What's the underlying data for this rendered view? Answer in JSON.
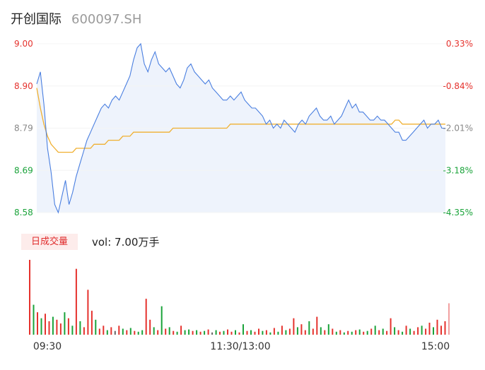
{
  "header": {
    "name": "开创国际",
    "code": "600097.SH"
  },
  "volume": {
    "tag": "日成交量",
    "label": "vol: 7.00万手"
  },
  "colors": {
    "up": "#e5322d",
    "down": "#1aa33a",
    "flat": "#666666",
    "price_line": "#4a7fe0",
    "avg_line": "#f0b030",
    "area": "#eef3fc"
  },
  "chart_data": {
    "type": "line",
    "x_ticks": [
      "09:30",
      "11:30/13:00",
      "15:00"
    ],
    "y_left_ticks": [
      "9.00",
      "8.90",
      "8.79",
      "8.69",
      "8.58"
    ],
    "y_right_ticks": [
      "0.33%",
      "-0.84%",
      "-2.01%",
      "-3.18%",
      "-4.35%"
    ],
    "ylim": [
      8.58,
      9.0
    ],
    "series": [
      {
        "values": [
          8.9,
          8.93,
          8.85,
          8.74,
          8.68,
          8.6,
          8.58,
          8.62,
          8.66,
          8.6,
          8.63,
          8.67,
          8.7,
          8.73,
          8.76,
          8.78,
          8.8,
          8.82,
          8.84,
          8.85,
          8.84,
          8.86,
          8.87,
          8.86,
          8.88,
          8.9,
          8.92,
          8.96,
          8.99,
          9.0,
          8.95,
          8.93,
          8.96,
          8.98,
          8.95,
          8.94,
          8.93,
          8.94,
          8.92,
          8.9,
          8.89,
          8.91,
          8.94,
          8.95,
          8.93,
          8.92,
          8.91,
          8.9,
          8.91,
          8.89,
          8.88,
          8.87,
          8.86,
          8.86,
          8.87,
          8.86,
          8.87,
          8.88,
          8.86,
          8.85,
          8.84,
          8.84,
          8.83,
          8.82,
          8.8,
          8.81,
          8.79,
          8.8,
          8.79,
          8.81,
          8.8,
          8.79,
          8.78,
          8.8,
          8.81,
          8.8,
          8.82,
          8.83,
          8.84,
          8.82,
          8.81,
          8.81,
          8.82,
          8.8,
          8.81,
          8.82,
          8.84,
          8.86,
          8.84,
          8.85,
          8.83,
          8.83,
          8.82,
          8.81,
          8.81,
          8.82,
          8.81,
          8.81,
          8.8,
          8.79,
          8.78,
          8.78,
          8.76,
          8.76,
          8.77,
          8.78,
          8.79,
          8.8,
          8.81,
          8.79,
          8.8,
          8.8,
          8.81,
          8.79,
          8.79
        ]
      },
      {
        "values": [
          8.89,
          8.84,
          8.8,
          8.77,
          8.75,
          8.74,
          8.73,
          8.73,
          8.73,
          8.73,
          8.73,
          8.74,
          8.74,
          8.74,
          8.74,
          8.74,
          8.75,
          8.75,
          8.75,
          8.75,
          8.76,
          8.76,
          8.76,
          8.76,
          8.77,
          8.77,
          8.77,
          8.78,
          8.78,
          8.78,
          8.78,
          8.78,
          8.78,
          8.78,
          8.78,
          8.78,
          8.78,
          8.78,
          8.79,
          8.79,
          8.79,
          8.79,
          8.79,
          8.79,
          8.79,
          8.79,
          8.79,
          8.79,
          8.79,
          8.79,
          8.79,
          8.79,
          8.79,
          8.79,
          8.8,
          8.8,
          8.8,
          8.8,
          8.8,
          8.8,
          8.8,
          8.8,
          8.8,
          8.8,
          8.8,
          8.8,
          8.8,
          8.8,
          8.8,
          8.8,
          8.8,
          8.8,
          8.8,
          8.8,
          8.8,
          8.8,
          8.8,
          8.8,
          8.8,
          8.8,
          8.8,
          8.8,
          8.8,
          8.8,
          8.8,
          8.8,
          8.8,
          8.8,
          8.8,
          8.8,
          8.8,
          8.8,
          8.8,
          8.8,
          8.8,
          8.8,
          8.8,
          8.8,
          8.8,
          8.8,
          8.81,
          8.81,
          8.8,
          8.8,
          8.8,
          8.8,
          8.8,
          8.8,
          8.8,
          8.8,
          8.8,
          8.8,
          8.8,
          8.8,
          8.8
        ]
      }
    ],
    "volume_bars": [
      {
        "v": 100,
        "d": "up"
      },
      {
        "v": 40,
        "d": "down"
      },
      {
        "v": 30,
        "d": "up"
      },
      {
        "v": 22,
        "d": "down"
      },
      {
        "v": 28,
        "d": "up"
      },
      {
        "v": 18,
        "d": "up"
      },
      {
        "v": 24,
        "d": "down"
      },
      {
        "v": 20,
        "d": "up"
      },
      {
        "v": 15,
        "d": "up"
      },
      {
        "v": 30,
        "d": "down"
      },
      {
        "v": 22,
        "d": "up"
      },
      {
        "v": 12,
        "d": "down"
      },
      {
        "v": 88,
        "d": "up"
      },
      {
        "v": 18,
        "d": "down"
      },
      {
        "v": 10,
        "d": "up"
      },
      {
        "v": 60,
        "d": "up"
      },
      {
        "v": 32,
        "d": "up"
      },
      {
        "v": 20,
        "d": "down"
      },
      {
        "v": 8,
        "d": "up"
      },
      {
        "v": 12,
        "d": "up"
      },
      {
        "v": 6,
        "d": "down"
      },
      {
        "v": 10,
        "d": "up"
      },
      {
        "v": 5,
        "d": "flat"
      },
      {
        "v": 12,
        "d": "up"
      },
      {
        "v": 8,
        "d": "down"
      },
      {
        "v": 6,
        "d": "up"
      },
      {
        "v": 9,
        "d": "down"
      },
      {
        "v": 5,
        "d": "up"
      },
      {
        "v": 4,
        "d": "down"
      },
      {
        "v": 6,
        "d": "down"
      },
      {
        "v": 48,
        "d": "up"
      },
      {
        "v": 20,
        "d": "up"
      },
      {
        "v": 10,
        "d": "down"
      },
      {
        "v": 6,
        "d": "up"
      },
      {
        "v": 38,
        "d": "down"
      },
      {
        "v": 8,
        "d": "up"
      },
      {
        "v": 10,
        "d": "down"
      },
      {
        "v": 5,
        "d": "up"
      },
      {
        "v": 4,
        "d": "down"
      },
      {
        "v": 12,
        "d": "up"
      },
      {
        "v": 6,
        "d": "down"
      },
      {
        "v": 7,
        "d": "down"
      },
      {
        "v": 5,
        "d": "up"
      },
      {
        "v": 6,
        "d": "down"
      },
      {
        "v": 4,
        "d": "up"
      },
      {
        "v": 5,
        "d": "down"
      },
      {
        "v": 7,
        "d": "up"
      },
      {
        "v": 3,
        "d": "flat"
      },
      {
        "v": 6,
        "d": "down"
      },
      {
        "v": 4,
        "d": "up"
      },
      {
        "v": 5,
        "d": "down"
      },
      {
        "v": 7,
        "d": "up"
      },
      {
        "v": 4,
        "d": "up"
      },
      {
        "v": 6,
        "d": "down"
      },
      {
        "v": 3,
        "d": "up"
      },
      {
        "v": 14,
        "d": "down"
      },
      {
        "v": 5,
        "d": "up"
      },
      {
        "v": 6,
        "d": "down"
      },
      {
        "v": 4,
        "d": "up"
      },
      {
        "v": 8,
        "d": "up"
      },
      {
        "v": 5,
        "d": "down"
      },
      {
        "v": 6,
        "d": "up"
      },
      {
        "v": 3,
        "d": "down"
      },
      {
        "v": 9,
        "d": "up"
      },
      {
        "v": 4,
        "d": "down"
      },
      {
        "v": 12,
        "d": "up"
      },
      {
        "v": 6,
        "d": "down"
      },
      {
        "v": 8,
        "d": "up"
      },
      {
        "v": 22,
        "d": "up"
      },
      {
        "v": 10,
        "d": "down"
      },
      {
        "v": 14,
        "d": "up"
      },
      {
        "v": 6,
        "d": "up"
      },
      {
        "v": 18,
        "d": "down"
      },
      {
        "v": 8,
        "d": "up"
      },
      {
        "v": 24,
        "d": "up"
      },
      {
        "v": 10,
        "d": "down"
      },
      {
        "v": 6,
        "d": "up"
      },
      {
        "v": 14,
        "d": "down"
      },
      {
        "v": 8,
        "d": "up"
      },
      {
        "v": 4,
        "d": "down"
      },
      {
        "v": 6,
        "d": "up"
      },
      {
        "v": 3,
        "d": "down"
      },
      {
        "v": 5,
        "d": "up"
      },
      {
        "v": 4,
        "d": "down"
      },
      {
        "v": 6,
        "d": "up"
      },
      {
        "v": 7,
        "d": "down"
      },
      {
        "v": 4,
        "d": "up"
      },
      {
        "v": 5,
        "d": "down"
      },
      {
        "v": 8,
        "d": "up"
      },
      {
        "v": 12,
        "d": "down"
      },
      {
        "v": 6,
        "d": "up"
      },
      {
        "v": 8,
        "d": "down"
      },
      {
        "v": 5,
        "d": "up"
      },
      {
        "v": 22,
        "d": "up"
      },
      {
        "v": 10,
        "d": "down"
      },
      {
        "v": 6,
        "d": "up"
      },
      {
        "v": 4,
        "d": "down"
      },
      {
        "v": 12,
        "d": "up"
      },
      {
        "v": 8,
        "d": "down"
      },
      {
        "v": 5,
        "d": "up"
      },
      {
        "v": 10,
        "d": "up"
      },
      {
        "v": 12,
        "d": "down"
      },
      {
        "v": 8,
        "d": "up"
      },
      {
        "v": 16,
        "d": "up"
      },
      {
        "v": 10,
        "d": "down"
      },
      {
        "v": 20,
        "d": "up"
      },
      {
        "v": 12,
        "d": "up"
      },
      {
        "v": 18,
        "d": "up"
      },
      {
        "v": 42,
        "d": "flat"
      }
    ]
  }
}
